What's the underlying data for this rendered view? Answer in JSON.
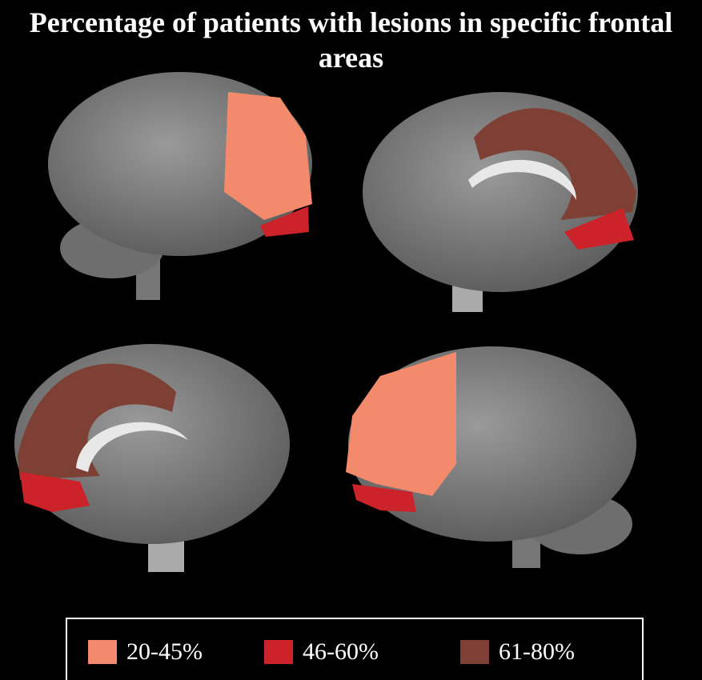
{
  "title": "Percentage of patients with lesions in specific frontal areas",
  "legend": [
    {
      "label": "20-45%",
      "color": "#f28a6b"
    },
    {
      "label": "46-60%",
      "color": "#cc2229"
    },
    {
      "label": "61-80%",
      "color": "#7e4034"
    }
  ]
}
